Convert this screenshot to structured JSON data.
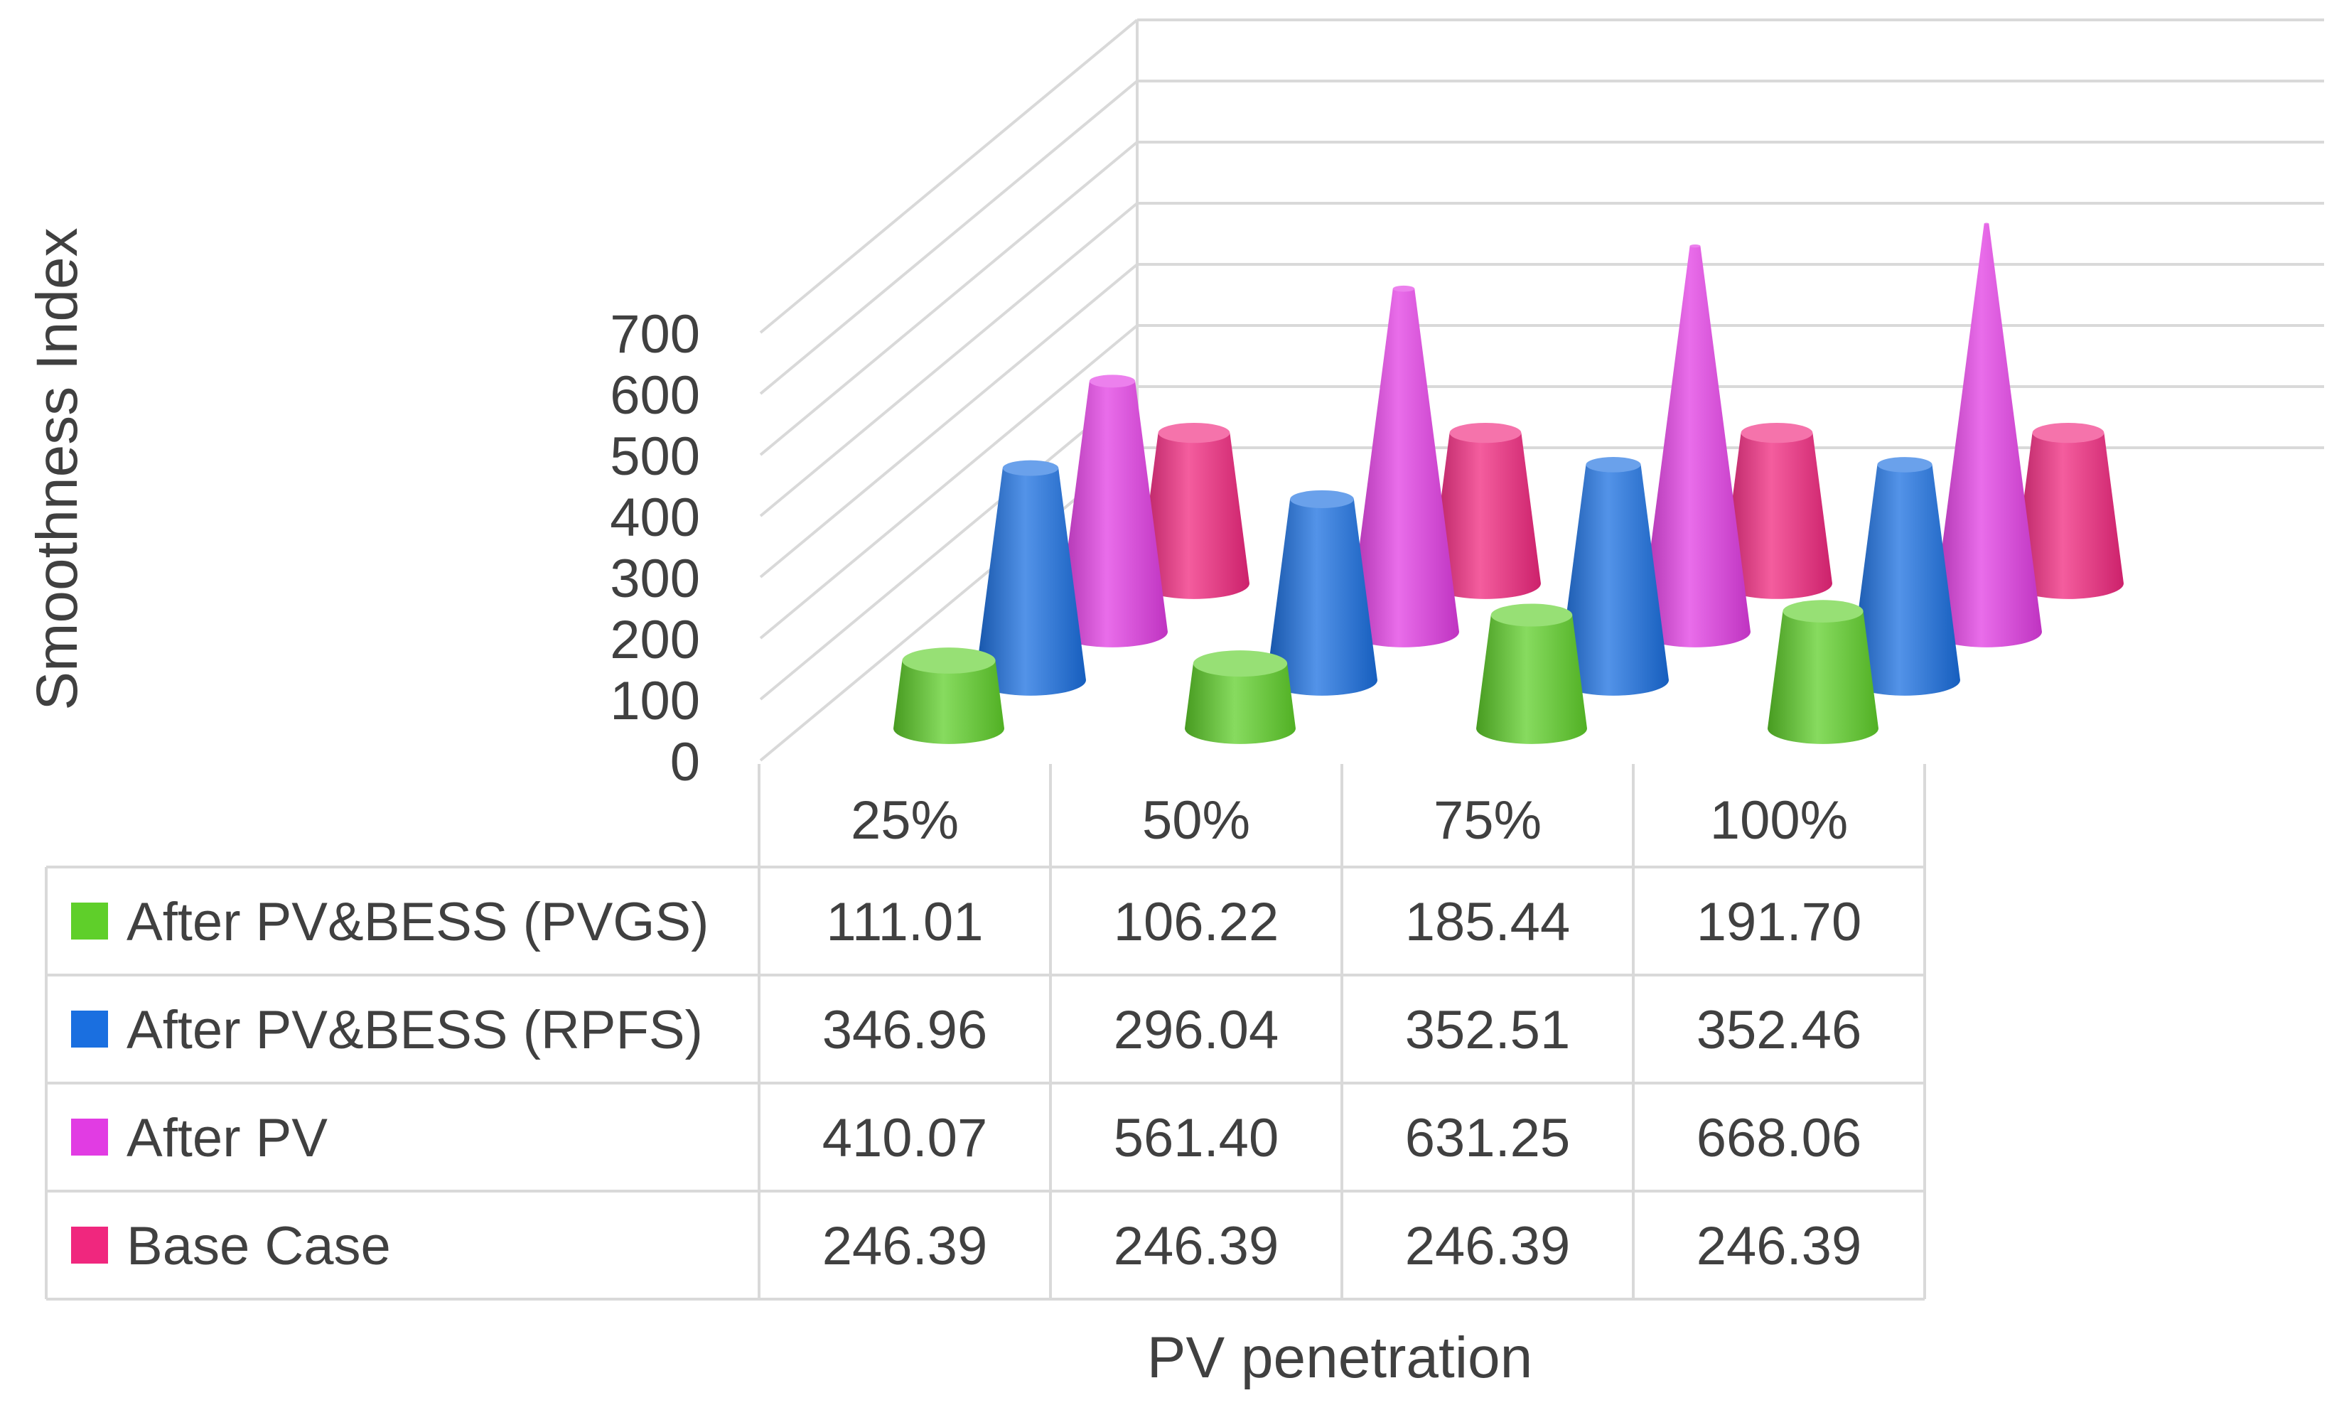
{
  "chart_data": {
    "type": "bar",
    "style": "3d-cone",
    "title": "",
    "xlabel": "PV penetration",
    "ylabel": "Smoothness Index",
    "ylim": [
      0,
      700
    ],
    "yticks": [
      "0",
      "100",
      "200",
      "300",
      "400",
      "500",
      "600",
      "700"
    ],
    "categories": [
      "25%",
      "50%",
      "75%",
      "100%"
    ],
    "series": [
      {
        "name": "After PV&BESS (PVGS)",
        "color": "#5fcf2a",
        "values": [
          111.01,
          106.22,
          185.44,
          191.7
        ],
        "labels": [
          "111.01",
          "106.22",
          "185.44",
          "191.70"
        ]
      },
      {
        "name": "After PV&BESS (RPFS)",
        "color": "#1a6fe0",
        "values": [
          346.96,
          296.04,
          352.51,
          352.46
        ],
        "labels": [
          "346.96",
          "296.04",
          "352.51",
          "352.46"
        ]
      },
      {
        "name": "After PV",
        "color": "#e13ce3",
        "values": [
          410.07,
          561.4,
          631.25,
          668.06
        ],
        "labels": [
          "410.07",
          "561.40",
          "631.25",
          "668.06"
        ]
      },
      {
        "name": "Base Case",
        "color": "#f0277e",
        "values": [
          246.39,
          246.39,
          246.39,
          246.39
        ],
        "labels": [
          "246.39",
          "246.39",
          "246.39",
          "246.39"
        ]
      }
    ],
    "grid": true,
    "legend": "data-table"
  }
}
